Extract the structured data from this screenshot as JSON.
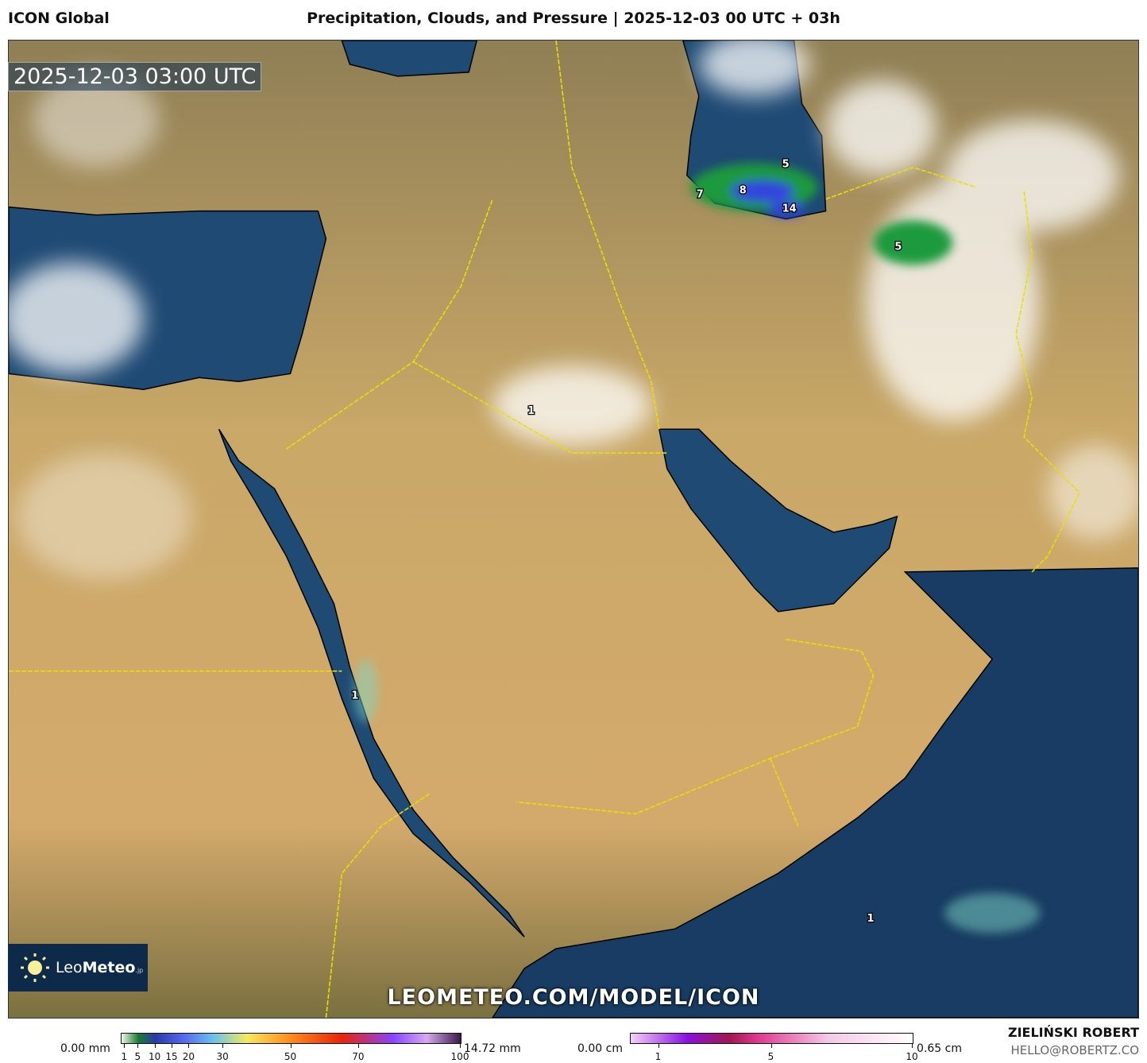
{
  "header": {
    "model": "ICON Global",
    "title": "Precipitation, Clouds, and Pressure | 2025-12-03 00 UTC + 03h"
  },
  "map": {
    "valid_time": "2025-12-03 03:00 UTC",
    "watermark_url": "LEOMETEO.COM/MODEL/ICON",
    "logo": {
      "name": "LeoMeteo",
      "prefix": "Leo",
      "suffix": "Meteo",
      "tld": ".jp"
    },
    "precip_labels": [
      "5",
      "7",
      "8",
      "14",
      "5",
      "1",
      "1",
      "1"
    ],
    "colors": {
      "land": "#c9a868",
      "sea": "#1f4a74",
      "border_country": "#e8e000",
      "border_region": "#bbbbbb",
      "rain_green": "#1e9a3c",
      "rain_blue": "#3344dd"
    }
  },
  "legend_rain": {
    "min_label": "0.00 mm",
    "max_label": "14.72 mm",
    "ticks": [
      "1",
      "5",
      "10",
      "15",
      "20",
      "30",
      "50",
      "70",
      "100"
    ]
  },
  "legend_snow": {
    "min_label": "0.00 cm",
    "max_label": "0.65 cm",
    "ticks": [
      "1",
      "5",
      "10"
    ]
  },
  "credits": {
    "author": "ZIELIŃSKI ROBERT",
    "email": "HELLO@ROBERTZ.CO"
  }
}
